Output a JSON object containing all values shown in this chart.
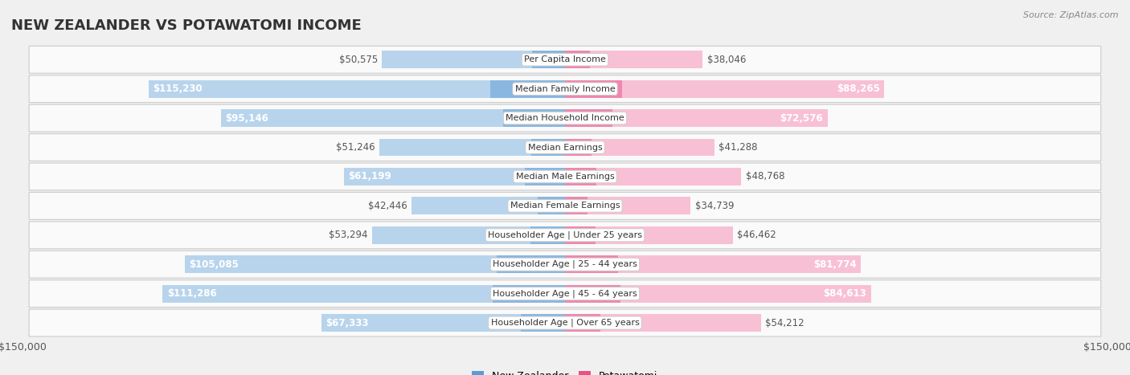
{
  "title": "NEW ZEALANDER VS POTAWATOMI INCOME",
  "source": "Source: ZipAtlas.com",
  "categories": [
    "Per Capita Income",
    "Median Family Income",
    "Median Household Income",
    "Median Earnings",
    "Median Male Earnings",
    "Median Female Earnings",
    "Householder Age | Under 25 years",
    "Householder Age | 25 - 44 years",
    "Householder Age | 45 - 64 years",
    "Householder Age | Over 65 years"
  ],
  "left_values": [
    50575,
    115230,
    95146,
    51246,
    61199,
    42446,
    53294,
    105085,
    111286,
    67333
  ],
  "right_values": [
    38046,
    88265,
    72576,
    41288,
    48768,
    34739,
    46462,
    81774,
    84613,
    54212
  ],
  "left_labels": [
    "$50,575",
    "$115,230",
    "$95,146",
    "$51,246",
    "$61,199",
    "$42,446",
    "$53,294",
    "$105,085",
    "$111,286",
    "$67,333"
  ],
  "right_labels": [
    "$38,046",
    "$88,265",
    "$72,576",
    "$41,288",
    "$48,768",
    "$34,739",
    "$46,462",
    "$81,774",
    "$84,613",
    "$54,212"
  ],
  "left_color_light": "#b8d4ec",
  "left_color_dark": "#5b9bd5",
  "right_color_light": "#f8c0d4",
  "right_color_dark": "#e8508a",
  "max_value": 150000,
  "left_legend": "New Zealander",
  "right_legend": "Potawatomi",
  "bg_color": "#f0f0f0",
  "row_bg": "#fafafa",
  "title_fontsize": 13,
  "source_fontsize": 8,
  "label_fontsize": 8.5,
  "axis_fontsize": 9,
  "inside_threshold": 0.38
}
